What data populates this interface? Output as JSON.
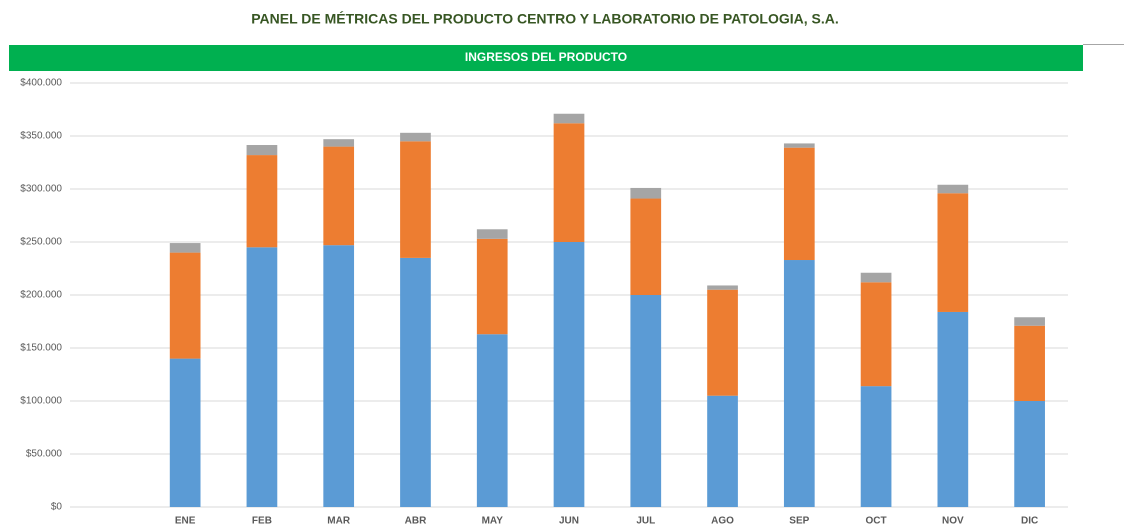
{
  "page_title": "PANEL DE MÉTRICAS DEL PRODUCTO CENTRO Y LABORATORIO DE PATOLOGIA, S.A.",
  "chart_data": {
    "type": "stacked_bar",
    "title": "INGRESOS DEL PRODUCTO",
    "categories": [
      null,
      "ENE",
      "FEB",
      "MAR",
      "ABR",
      "MAY",
      "JUN",
      "JUL",
      "AGO",
      "SEP",
      "OCT",
      "NOV",
      "DIC"
    ],
    "series": [
      {
        "color": "#5b9bd5",
        "values": [
          null,
          140000,
          245000,
          247000,
          235000,
          163000,
          250000,
          200000,
          105000,
          233000,
          114000,
          184000,
          100000
        ]
      },
      {
        "color": "#ed7d31",
        "values": [
          null,
          100000,
          87000,
          93000,
          110000,
          90000,
          112000,
          91000,
          100000,
          106000,
          98000,
          112000,
          71000
        ]
      },
      {
        "color": "#a5a5a5",
        "values": [
          null,
          9000,
          9500,
          7000,
          8000,
          9000,
          9000,
          10000,
          4000,
          4000,
          9000,
          8000,
          8000
        ]
      }
    ],
    "ylim": [
      0,
      400000
    ],
    "yticks": [
      {
        "value": 0,
        "label": "$0"
      },
      {
        "value": 50000,
        "label": "$50.000"
      },
      {
        "value": 100000,
        "label": "$100.000"
      },
      {
        "value": 150000,
        "label": "$150.000"
      },
      {
        "value": 200000,
        "label": "$200.000"
      },
      {
        "value": 250000,
        "label": "$250.000"
      },
      {
        "value": 300000,
        "label": "$300.000"
      },
      {
        "value": 350000,
        "label": "$350.000"
      },
      {
        "value": 400000,
        "label": "$400.000"
      }
    ],
    "grid": true,
    "header_color": "#00b050"
  }
}
